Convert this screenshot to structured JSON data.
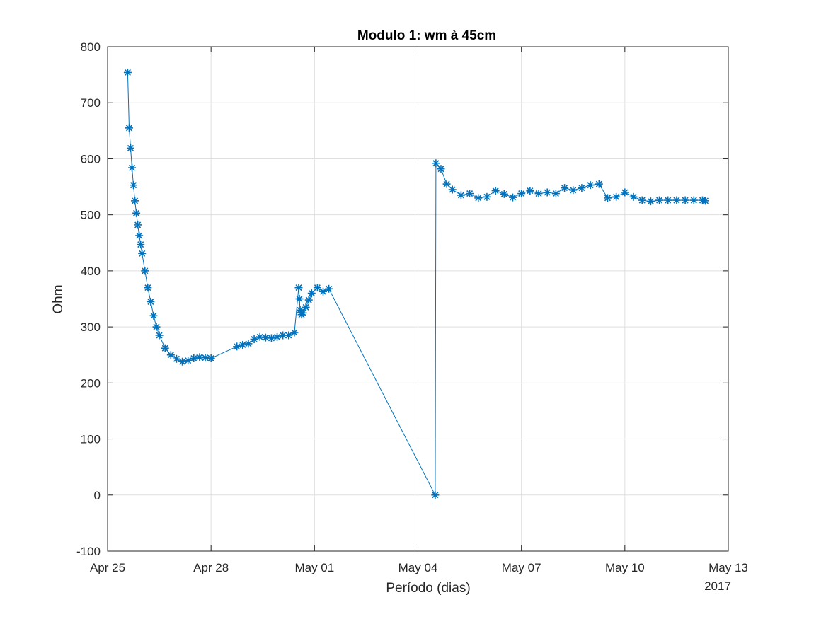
{
  "chart_data": {
    "type": "line",
    "title": "Modulo 1: wm à 45cm",
    "xlabel": "Período (dias)",
    "ylabel": "Ohm",
    "year_label": "2017",
    "xlim": [
      "2017-04-25",
      "2017-05-13"
    ],
    "ylim": [
      -100,
      800
    ],
    "x_ticks": [
      {
        "date": "2017-04-25",
        "label": "Apr 25"
      },
      {
        "date": "2017-04-28",
        "label": "Apr 28"
      },
      {
        "date": "2017-05-01",
        "label": "May 01"
      },
      {
        "date": "2017-05-04",
        "label": "May 04"
      },
      {
        "date": "2017-05-07",
        "label": "May 07"
      },
      {
        "date": "2017-05-10",
        "label": "May 10"
      },
      {
        "date": "2017-05-13",
        "label": "May 13"
      }
    ],
    "y_ticks": [
      -100,
      0,
      100,
      200,
      300,
      400,
      500,
      600,
      700,
      800
    ],
    "grid": true,
    "marker": "asterisk",
    "color": "#0072bd",
    "series": [
      {
        "name": "",
        "x": [
          "2017-04-25 14:00",
          "2017-04-25 15:00",
          "2017-04-25 16:00",
          "2017-04-25 17:00",
          "2017-04-25 18:00",
          "2017-04-25 19:00",
          "2017-04-25 20:00",
          "2017-04-25 21:00",
          "2017-04-25 22:00",
          "2017-04-25 23:00",
          "2017-04-26 00:00",
          "2017-04-26 02:00",
          "2017-04-26 04:00",
          "2017-04-26 06:00",
          "2017-04-26 08:00",
          "2017-04-26 10:00",
          "2017-04-26 12:00",
          "2017-04-26 16:00",
          "2017-04-26 20:00",
          "2017-04-27 00:00",
          "2017-04-27 04:00",
          "2017-04-27 08:00",
          "2017-04-27 12:00",
          "2017-04-27 16:00",
          "2017-04-27 20:00",
          "2017-04-28 00:00",
          "2017-04-28 18:00",
          "2017-04-28 22:00",
          "2017-04-29 02:00",
          "2017-04-29 06:00",
          "2017-04-29 10:00",
          "2017-04-29 14:00",
          "2017-04-29 18:00",
          "2017-04-29 22:00",
          "2017-04-30 02:00",
          "2017-04-30 06:00",
          "2017-04-30 10:00",
          "2017-04-30 13:00",
          "2017-04-30 13:30",
          "2017-04-30 14:00",
          "2017-04-30 15:00",
          "2017-04-30 16:00",
          "2017-04-30 18:00",
          "2017-04-30 20:00",
          "2017-04-30 22:00",
          "2017-05-01 02:00",
          "2017-05-01 06:00",
          "2017-05-01 10:00",
          "2017-05-04 12:00",
          "2017-05-04 12:30",
          "2017-05-04 16:00",
          "2017-05-04 20:00",
          "2017-05-05 00:00",
          "2017-05-05 06:00",
          "2017-05-05 12:00",
          "2017-05-05 18:00",
          "2017-05-06 00:00",
          "2017-05-06 06:00",
          "2017-05-06 12:00",
          "2017-05-06 18:00",
          "2017-05-07 00:00",
          "2017-05-07 06:00",
          "2017-05-07 12:00",
          "2017-05-07 18:00",
          "2017-05-08 00:00",
          "2017-05-08 06:00",
          "2017-05-08 12:00",
          "2017-05-08 18:00",
          "2017-05-09 00:00",
          "2017-05-09 06:00",
          "2017-05-09 12:00",
          "2017-05-09 18:00",
          "2017-05-10 00:00",
          "2017-05-10 06:00",
          "2017-05-10 12:00",
          "2017-05-10 18:00",
          "2017-05-11 00:00",
          "2017-05-11 06:00",
          "2017-05-11 12:00",
          "2017-05-11 18:00",
          "2017-05-12 00:00",
          "2017-05-12 06:00",
          "2017-05-12 08:00"
        ],
        "y": [
          754,
          655,
          619,
          584,
          553,
          525,
          503,
          482,
          463,
          447,
          431,
          400,
          370,
          345,
          320,
          300,
          285,
          262,
          250,
          243,
          238,
          240,
          244,
          246,
          245,
          244,
          265,
          268,
          270,
          278,
          282,
          281,
          280,
          282,
          285,
          285,
          290,
          370,
          350,
          330,
          322,
          325,
          335,
          348,
          360,
          370,
          363,
          368,
          0,
          592,
          582,
          555,
          545,
          535,
          538,
          530,
          532,
          543,
          537,
          531,
          538,
          543,
          538,
          540,
          538,
          548,
          544,
          548,
          553,
          555,
          530,
          532,
          540,
          532,
          526,
          524,
          526,
          526,
          526,
          526,
          526,
          526,
          525
        ]
      }
    ]
  }
}
